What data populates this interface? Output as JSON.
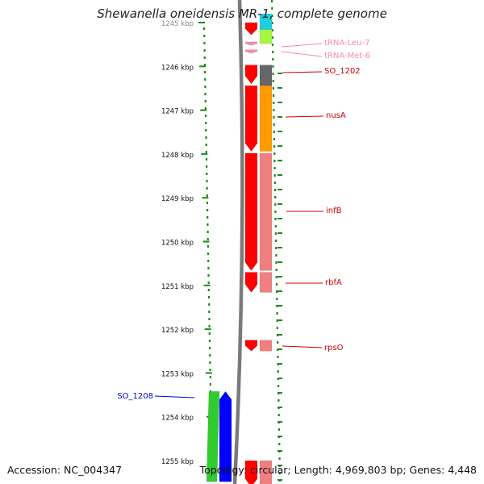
{
  "title": "Shewanella oneidensis MR-1, complete genome",
  "footer": {
    "accession": "Accession: NC_004347",
    "topology": "Topology: circular; Length: 4,969,803 bp; Genes: 4,448"
  },
  "ruler": {
    "labels": [
      "1245 kbp",
      "1246 kbp",
      "1247 kbp",
      "1248 kbp",
      "1249 kbp",
      "1250 kbp",
      "1251 kbp",
      "1252 kbp",
      "1253 kbp",
      "1254 kbp",
      "1255 kbp"
    ]
  },
  "features": {
    "forward": [
      {
        "color": "#ff0000",
        "start": 1245.0,
        "end": 1245.28
      },
      {
        "color": "#f58ab0",
        "start": 1245.44,
        "end": 1245.52
      },
      {
        "color": "#f58ab0",
        "start": 1245.62,
        "end": 1245.7
      },
      {
        "color": "#ff0000",
        "start": 1245.97,
        "end": 1246.4
      },
      {
        "color": "#ff0000",
        "start": 1246.44,
        "end": 1247.94
      },
      {
        "color": "#ff0000",
        "start": 1247.98,
        "end": 1250.66
      },
      {
        "color": "#ff0000",
        "start": 1250.7,
        "end": 1251.16
      },
      {
        "color": "#ff0000",
        "start": 1252.25,
        "end": 1252.5
      },
      {
        "color": "#ff0000",
        "start": 1255.0,
        "end": 1255.6
      }
    ],
    "right": [
      {
        "color": "#1ecfe0",
        "start": 1244.8,
        "end": 1245.16
      },
      {
        "color": "#a6f542",
        "start": 1245.16,
        "end": 1245.48
      },
      {
        "color": "#666666",
        "start": 1245.97,
        "end": 1246.44
      },
      {
        "color": "#ff9a00",
        "start": 1246.44,
        "end": 1247.94
      },
      {
        "color": "#f08080",
        "start": 1247.98,
        "end": 1250.66
      },
      {
        "color": "#f08080",
        "start": 1250.7,
        "end": 1251.16
      },
      {
        "color": "#f08080",
        "start": 1252.25,
        "end": 1252.5
      },
      {
        "color": "#f08080",
        "start": 1255.0,
        "end": 1255.6
      }
    ],
    "reverse": [
      {
        "color": "#2ecc2e",
        "start": 1253.42,
        "end": 1255.48
      },
      {
        "color": "#0000ff",
        "start": 1253.42,
        "end": 1255.48
      }
    ]
  },
  "labels": {
    "right": [
      {
        "text": "tRNA-Leu-7",
        "color": "#f58ab0"
      },
      {
        "text": "tRNA-Met-6",
        "color": "#f58ab0"
      },
      {
        "text": "SO_1202",
        "color": "#cc0000"
      },
      {
        "text": "nusA",
        "color": "#cc0000"
      },
      {
        "text": "infB",
        "color": "#cc0000"
      },
      {
        "text": "rbfA",
        "color": "#cc0000"
      },
      {
        "text": "rpsO",
        "color": "#cc0000"
      }
    ],
    "left": [
      {
        "text": "SO_1208",
        "color": "#0000cc"
      }
    ]
  }
}
